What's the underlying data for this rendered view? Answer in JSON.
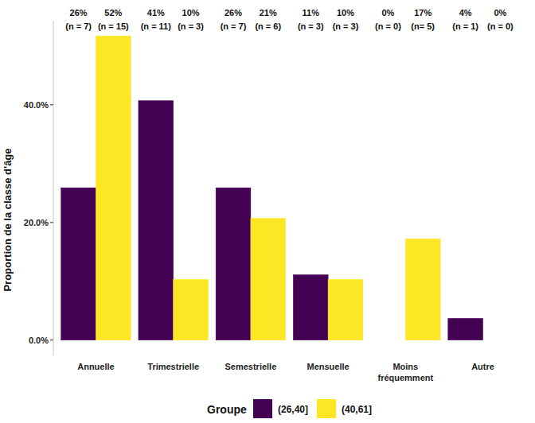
{
  "chart_data": {
    "type": "bar",
    "y_label": "Proportion de la classe d'âge",
    "legend_title": "Groupe",
    "legend": "bottom",
    "grid": false,
    "data_labels": true,
    "categories": [
      "Annuelle",
      "Trimestrielle",
      "Semestrielle",
      "Mensuelle",
      "Moins fréquemment",
      "Autre"
    ],
    "series": [
      {
        "name": "(26,40]",
        "color": "#440154",
        "values": [
          25.9,
          40.7,
          25.9,
          11.1,
          0,
          3.7
        ],
        "value_labels": [
          "26%",
          "41%",
          "26%",
          "11%",
          "0%",
          "4%"
        ],
        "counts": [
          7,
          11,
          7,
          3,
          0,
          1
        ],
        "count_labels": [
          "(n = 7)",
          "(n = 11)",
          "(n = 7)",
          "(n = 3)",
          "(n = 0)",
          "(n = 1)"
        ]
      },
      {
        "name": "(40,61]",
        "color": "#FDE725",
        "values": [
          51.7,
          10.3,
          20.7,
          10.3,
          17.2,
          0
        ],
        "value_labels": [
          "52%",
          "10%",
          "21%",
          "10%",
          "17%",
          "0%"
        ],
        "counts": [
          15,
          3,
          6,
          3,
          5,
          0
        ],
        "count_labels": [
          "(n = 15)",
          "(n = 3)",
          "(n = 6)",
          "(n = 3)",
          "(n= 5)",
          "(n = 0)"
        ]
      }
    ],
    "ylim": [
      -2.6,
      54.3
    ],
    "yticks": [
      {
        "value": 0,
        "label": "0.0%"
      },
      {
        "value": 20,
        "label": "20.0%"
      },
      {
        "value": 40,
        "label": "40.0%"
      }
    ]
  }
}
